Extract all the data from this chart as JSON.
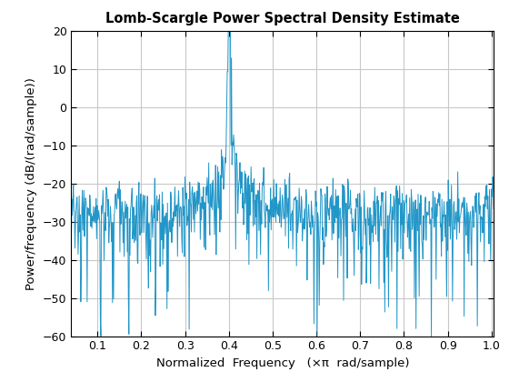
{
  "title": "Lomb-Scargle Power Spectral Density Estimate",
  "xlabel": "Normalized  Frequency   (×π  rad/sample)",
  "ylabel": "Power/fre​quency (dB/(rad/sample))",
  "xlim": [
    0.04,
    1.005
  ],
  "ylim": [
    -60,
    20
  ],
  "xticks": [
    0.1,
    0.2,
    0.3,
    0.4,
    0.5,
    0.6,
    0.7,
    0.8,
    0.9,
    1.0
  ],
  "yticks": [
    -60,
    -50,
    -40,
    -30,
    -20,
    -10,
    0,
    10,
    20
  ],
  "line_color": "#2196c8",
  "line_width": 0.7,
  "background_color": "#ffffff",
  "grid_color": "#c8c8c8",
  "noise_floor": -26,
  "noise_std": 5,
  "peak_freq": 0.4,
  "peak_value": 19.0,
  "num_points": 800,
  "seed": 7
}
